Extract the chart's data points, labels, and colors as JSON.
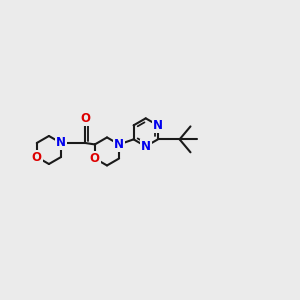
{
  "background_color": "#ebebeb",
  "bond_color": "#1a1a1a",
  "N_color": "#0000ee",
  "O_color": "#dd0000",
  "line_width": 1.5,
  "font_size_atom": 8.5,
  "fig_width": 3.0,
  "fig_height": 3.0,
  "dpi": 100,
  "xlim": [
    -3.2,
    3.5
  ],
  "ylim": [
    -1.4,
    1.4
  ]
}
